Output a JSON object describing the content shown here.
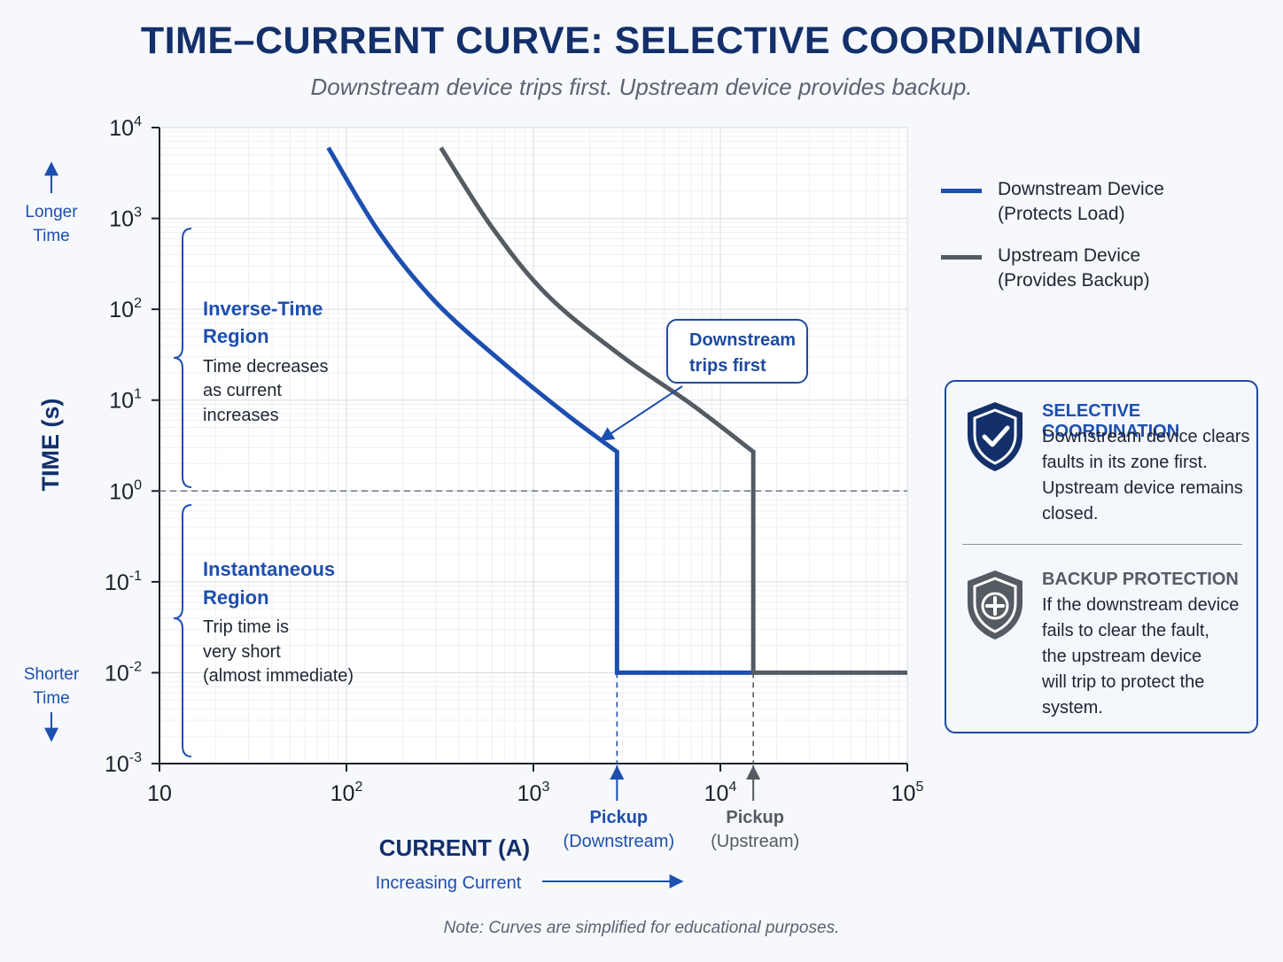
{
  "header": {
    "title": "TIME–CURRENT CURVE: SELECTIVE COORDINATION",
    "subtitle": "Downstream device trips first. Upstream device provides backup."
  },
  "colors": {
    "downstream": "#1d4fb0",
    "upstream": "#555b63",
    "title": "#13306b",
    "navy": "#13306b"
  },
  "chart_data": {
    "type": "line",
    "log_x": true,
    "log_y": true,
    "xlim": [
      10,
      100000
    ],
    "ylim": [
      0.001,
      10000
    ],
    "grid": true,
    "xlabel": "CURRENT (A)",
    "ylabel": "TIME (s)",
    "x_tick_labels": [
      {
        "value": 10,
        "base": "10",
        "exp": ""
      },
      {
        "value": 100,
        "base": "10",
        "exp": "2"
      },
      {
        "value": 1000,
        "base": "10",
        "exp": "3"
      },
      {
        "value": 10000,
        "base": "10",
        "exp": "4"
      },
      {
        "value": 100000,
        "base": "10",
        "exp": "5"
      }
    ],
    "y_tick_labels": [
      {
        "value": 10000,
        "base": "10",
        "exp": "4"
      },
      {
        "value": 1000,
        "base": "10",
        "exp": "3"
      },
      {
        "value": 100,
        "base": "10",
        "exp": "2"
      },
      {
        "value": 10,
        "base": "10",
        "exp": "1"
      },
      {
        "value": 1,
        "base": "10",
        "exp": "0"
      },
      {
        "value": 0.1,
        "base": "10",
        "exp": "-1"
      },
      {
        "value": 0.01,
        "base": "10",
        "exp": "-2"
      },
      {
        "value": 0.001,
        "base": "10",
        "exp": "-3"
      }
    ],
    "series": [
      {
        "name": "Downstream Device",
        "x": [
          80,
          150,
          300,
          700,
          1500,
          2800,
          2800,
          2900,
          15500
        ],
        "y": [
          6000,
          700,
          120,
          25,
          7,
          2.7,
          0.01,
          0.01,
          0.01
        ]
      },
      {
        "name": "Upstream Device",
        "x": [
          320,
          600,
          1200,
          3000,
          7000,
          15000,
          15000,
          15500,
          100000
        ],
        "y": [
          6000,
          800,
          140,
          30,
          9,
          2.7,
          0.01,
          0.01,
          0.01
        ]
      }
    ],
    "reference_line": {
      "y": 1
    },
    "pickups": [
      {
        "x": 2800,
        "label_1": "Pickup",
        "label_2": "(Downstream)"
      },
      {
        "x": 15000,
        "label_1": "Pickup",
        "label_2": "(Upstream)"
      }
    ]
  },
  "axis_side": {
    "longer_1": "Longer",
    "longer_2": "Time",
    "shorter_1": "Shorter",
    "shorter_2": "Time",
    "increasing": "Increasing Current"
  },
  "regions": {
    "inverse_title_1": "Inverse-Time",
    "inverse_title_2": "Region",
    "inverse_desc_1": "Time decreases",
    "inverse_desc_2": "as current",
    "inverse_desc_3": "increases",
    "inst_title_1": "Instantaneous",
    "inst_title_2": "Region",
    "inst_desc_1": "Trip time is",
    "inst_desc_2": "very short",
    "inst_desc_3": "(almost immediate)"
  },
  "callout": {
    "line_1": "Downstream",
    "line_2": "trips first"
  },
  "legend": [
    {
      "line_1": "Downstream Device",
      "line_2": "(Protects Load)"
    },
    {
      "line_1": "Upstream Device",
      "line_2": "(Provides Backup)"
    }
  ],
  "info": {
    "selective": {
      "heading": "SELECTIVE COORDINATION",
      "icon": "shield-check-icon",
      "lines": [
        "Downstream device clears",
        "faults in its zone first.",
        "Upstream device remains",
        "closed."
      ]
    },
    "backup": {
      "heading": "BACKUP PROTECTION",
      "icon": "shield-plus-icon",
      "lines": [
        "If the downstream device",
        "fails to clear the fault,",
        "the upstream device",
        "will trip to protect the",
        "system."
      ]
    }
  },
  "note": "Note: Curves are simplified for educational purposes."
}
